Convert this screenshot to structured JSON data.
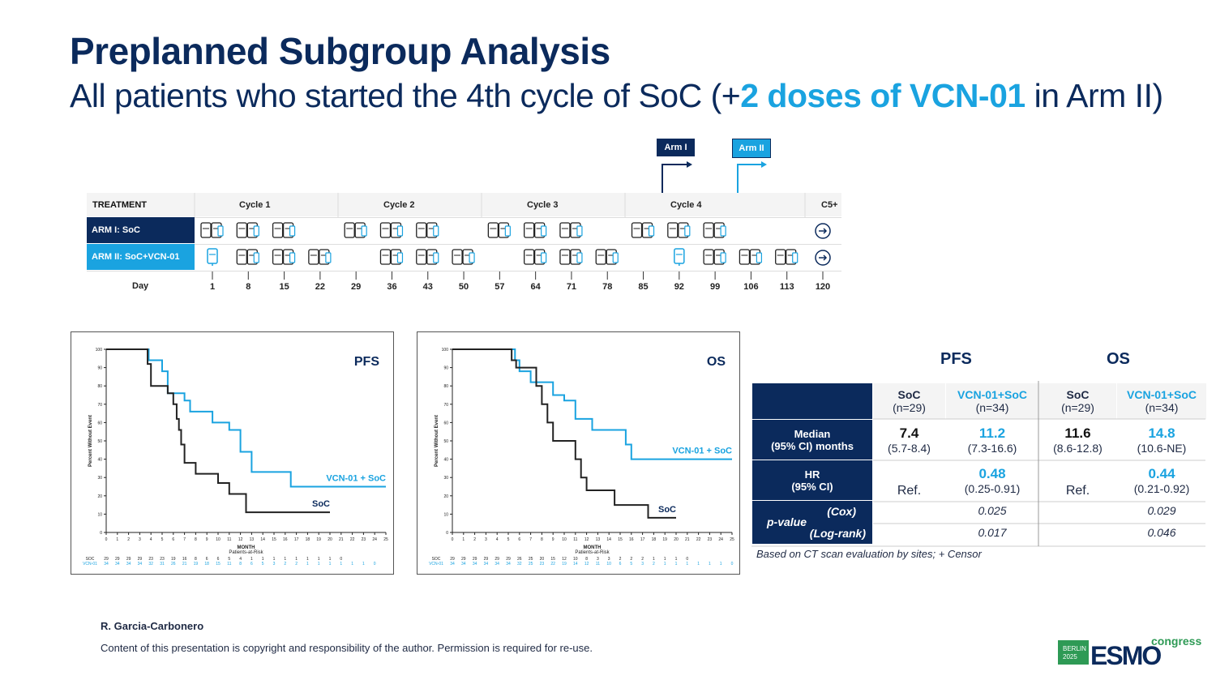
{
  "title": "Preplanned Subgroup Analysis",
  "subtitle": {
    "pre": "All patients who started the 4th cycle of SoC (+",
    "highlight": "2 doses of VCN-01",
    "post": " in Arm II)"
  },
  "arm_tags": {
    "arm1": "Arm I",
    "arm2": "Arm II"
  },
  "schedule": {
    "treatment_header": "TREATMENT",
    "cycles": [
      "Cycle  1",
      "Cycle  2",
      "Cycle  3",
      "Cycle  4",
      "C5+"
    ],
    "arm1_label": "ARM I: SoC",
    "arm2_label": "ARM II: SoC+VCN-01",
    "day_label": "Day",
    "days": [
      "1",
      "8",
      "15",
      "22",
      "29",
      "36",
      "43",
      "50",
      "57",
      "64",
      "71",
      "78",
      "85",
      "92",
      "99",
      "106",
      "113",
      "120"
    ]
  },
  "chart_data": [
    {
      "type": "line",
      "title": "PFS",
      "xlabel": "MONTH",
      "ylabel": "Percent Without Event",
      "xlim": [
        0,
        25
      ],
      "ylim": [
        0,
        100
      ],
      "xticks": [
        "0",
        "1",
        "2",
        "3",
        "4",
        "5",
        "6",
        "7",
        "8",
        "9",
        "10",
        "11",
        "12",
        "13",
        "14",
        "15",
        "16",
        "17",
        "18",
        "19",
        "20",
        "21",
        "22",
        "23",
        "24",
        "25"
      ],
      "yticks": [
        "0",
        "10",
        "20",
        "30",
        "40",
        "50",
        "60",
        "70",
        "80",
        "90",
        "100"
      ],
      "series": [
        {
          "name": "VCN-01 + SoC",
          "color": "#1aa3e0",
          "x": [
            0,
            3.5,
            3.8,
            5.0,
            5.5,
            7.0,
            7.5,
            9.0,
            9.5,
            11.0,
            12.0,
            13.0,
            16.5,
            25.0
          ],
          "y": [
            100,
            100,
            94,
            88,
            76,
            72,
            66,
            66,
            60,
            56,
            44,
            33,
            25,
            25
          ]
        },
        {
          "name": "SoC",
          "color": "#222222",
          "x": [
            0,
            3.5,
            3.7,
            4.0,
            5.5,
            6.0,
            6.3,
            6.5,
            6.7,
            7.0,
            8.0,
            10.0,
            11.0,
            12.5,
            20.0
          ],
          "y": [
            100,
            100,
            92,
            80,
            76,
            70,
            62,
            56,
            48,
            38,
            32,
            27,
            21,
            11,
            11
          ]
        }
      ],
      "risk_header": "Patients-at-Risk",
      "risk_rows": [
        {
          "name": "SOC",
          "values": [
            "29",
            "29",
            "29",
            "29",
            "23",
            "23",
            "19",
            "16",
            "8",
            "6",
            "6",
            "5",
            "4",
            "1",
            "1",
            "1",
            "1",
            "1",
            "1",
            "1",
            "1",
            "0",
            "",
            "",
            "",
            ""
          ]
        },
        {
          "name": "VCN-01",
          "values": [
            "34",
            "34",
            "34",
            "34",
            "32",
            "31",
            "26",
            "21",
            "19",
            "18",
            "15",
            "11",
            "8",
            "6",
            "5",
            "3",
            "2",
            "2",
            "1",
            "1",
            "1",
            "1",
            "1",
            "1",
            "0",
            ""
          ]
        }
      ]
    },
    {
      "type": "line",
      "title": "OS",
      "xlabel": "MONTH",
      "ylabel": "Percent Without Event",
      "xlim": [
        0,
        25
      ],
      "ylim": [
        0,
        100
      ],
      "xticks": [
        "0",
        "1",
        "2",
        "3",
        "4",
        "5",
        "6",
        "7",
        "8",
        "9",
        "10",
        "11",
        "12",
        "13",
        "14",
        "15",
        "16",
        "17",
        "18",
        "19",
        "20",
        "21",
        "22",
        "23",
        "24",
        "25"
      ],
      "yticks": [
        "0",
        "10",
        "20",
        "30",
        "40",
        "50",
        "60",
        "70",
        "80",
        "90",
        "100"
      ],
      "series": [
        {
          "name": "VCN-01 + SoC",
          "color": "#1aa3e0",
          "x": [
            0,
            5.2,
            5.6,
            6.0,
            7.0,
            8.0,
            9.0,
            10.0,
            11.0,
            12.5,
            14.0,
            15.5,
            16.0,
            25.0
          ],
          "y": [
            100,
            100,
            94,
            88,
            82,
            82,
            75,
            72,
            62,
            56,
            56,
            48,
            40,
            40
          ]
        },
        {
          "name": "SoC",
          "color": "#222222",
          "x": [
            0,
            5.0,
            5.3,
            5.7,
            6.0,
            7.5,
            8.0,
            8.5,
            9.0,
            10.5,
            11.0,
            11.5,
            12.0,
            13.0,
            14.5,
            17.5,
            20.0
          ],
          "y": [
            100,
            100,
            94,
            90,
            90,
            80,
            70,
            60,
            50,
            50,
            40,
            30,
            23,
            23,
            15,
            8,
            8
          ]
        }
      ],
      "risk_header": "Patients-at-Risk",
      "risk_rows": [
        {
          "name": "SOC",
          "values": [
            "29",
            "29",
            "29",
            "29",
            "29",
            "29",
            "26",
            "25",
            "20",
            "15",
            "12",
            "10",
            "8",
            "3",
            "3",
            "2",
            "2",
            "2",
            "1",
            "1",
            "1",
            "0",
            "",
            "",
            "",
            ""
          ]
        },
        {
          "name": "VCN-01",
          "values": [
            "34",
            "34",
            "34",
            "34",
            "34",
            "34",
            "32",
            "25",
            "23",
            "22",
            "19",
            "14",
            "12",
            "11",
            "10",
            "6",
            "5",
            "3",
            "2",
            "1",
            "1",
            "1",
            "1",
            "1",
            "1",
            "0"
          ]
        }
      ]
    }
  ],
  "results": {
    "pfs_title": "PFS",
    "os_title": "OS",
    "col_soc": "SoC",
    "col_vcn": "VCN-01+SoC",
    "n_soc": "(n=29)",
    "n_vcn": "(n=34)",
    "median_label_1": "Median",
    "median_label_2": "(95% CI) months",
    "pfs_soc_median": "7.4",
    "pfs_soc_ci": "(5.7-8.4)",
    "pfs_vcn_median": "11.2",
    "pfs_vcn_ci": "(7.3-16.6)",
    "os_soc_median": "11.6",
    "os_soc_ci": "(8.6-12.8)",
    "os_vcn_median": "14.8",
    "os_vcn_ci": "(10.6-NE)",
    "hr_label_1": "HR",
    "hr_label_2": "(95% CI)",
    "ref": "Ref.",
    "pfs_hr": "0.48",
    "pfs_hr_ci": "(0.25-0.91)",
    "os_hr": "0.44",
    "os_hr_ci": "(0.21-0.92)",
    "pvalue_label": "p-value",
    "cox_label": "(Cox)",
    "logrank_label": "(Log-rank)",
    "pfs_cox": "0.025",
    "pfs_logrank": "0.017",
    "os_cox": "0.029",
    "os_logrank": "0.046",
    "note": "Based on CT scan evaluation by sites;  + Censor"
  },
  "footer": {
    "author": "R. Garcia-Carbonero",
    "copyright": "Content of this presentation is copyright and responsibility of the author. Permission is required for re-use.",
    "logo_city": "BERLIN",
    "logo_year": "2025",
    "logo_name": "ESMO",
    "logo_congress": "congress"
  },
  "colors": {
    "navy": "#0b2a5c",
    "cyan": "#1aa3e0",
    "soc_line": "#222222"
  }
}
